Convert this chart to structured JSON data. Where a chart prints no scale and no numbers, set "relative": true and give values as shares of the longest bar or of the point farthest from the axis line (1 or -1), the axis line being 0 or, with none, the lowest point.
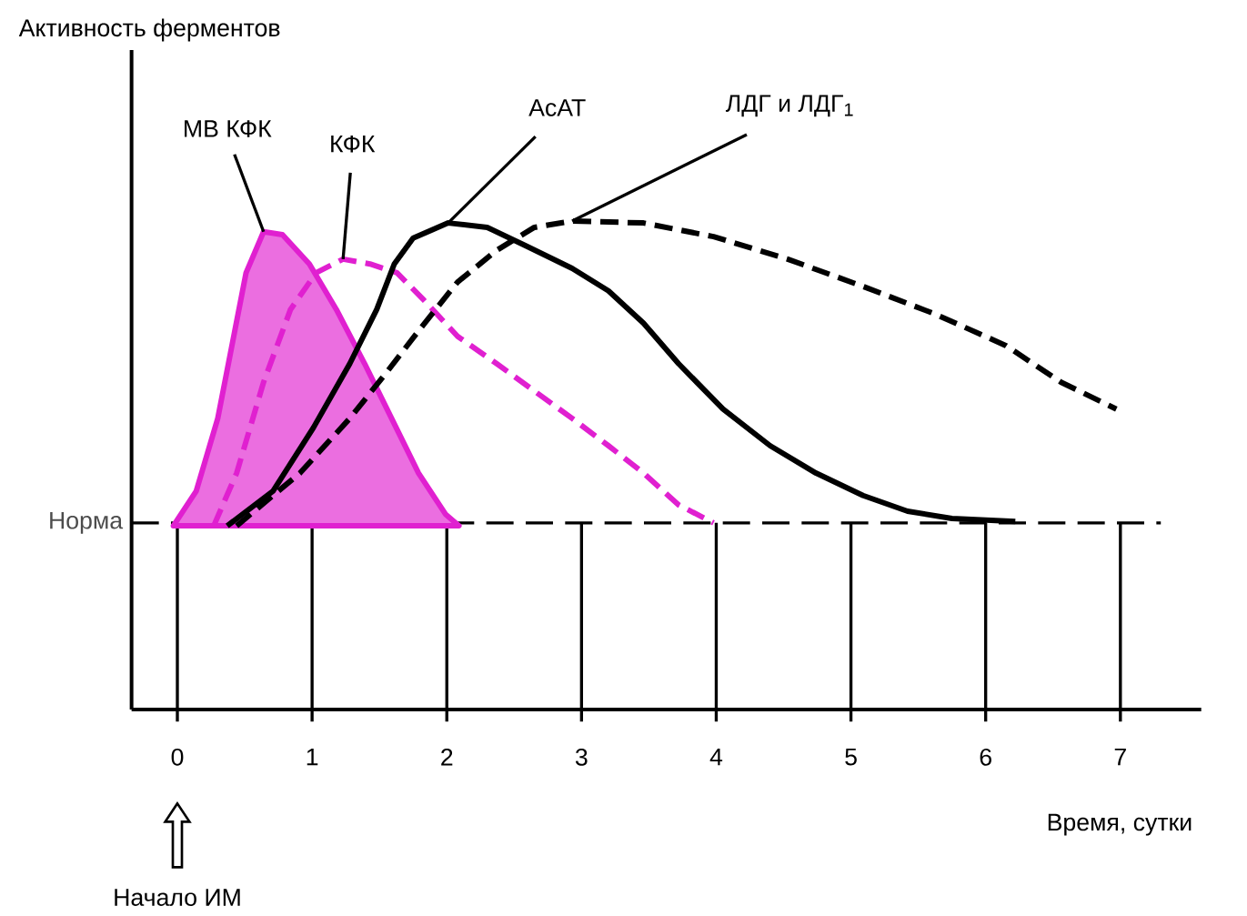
{
  "chart_data": {
    "type": "line",
    "relative": true,
    "xlabel": "Время, сутки",
    "xlim": [
      -0.34,
      7.6
    ],
    "xticks": [
      0,
      1,
      2,
      3,
      4,
      5,
      6,
      7
    ],
    "marker": "none",
    "ref_lines": [
      {
        "axis": "y",
        "value": 0.382,
        "label": "Норма",
        "line_style": "dashed",
        "color": "#000000"
      },
      {
        "axis": "x",
        "value": 0,
        "color": "#000000"
      },
      {
        "axis": "x",
        "value": 1,
        "color": "#000000"
      },
      {
        "axis": "x",
        "value": 2,
        "color": "#000000"
      },
      {
        "axis": "x",
        "value": 3,
        "color": "#000000"
      },
      {
        "axis": "x",
        "value": 4,
        "color": "#000000"
      },
      {
        "axis": "x",
        "value": 5,
        "color": "#000000"
      },
      {
        "axis": "x",
        "value": 6,
        "color": "#000000"
      },
      {
        "axis": "x",
        "value": 7,
        "color": "#000000"
      }
    ],
    "annotations": [
      "Активность ферментов",
      "Начало ИМ"
    ],
    "series": [
      {
        "name": "МВ КФК",
        "type": "area",
        "color": "#e020d0",
        "line_style": "solid",
        "x": [
          -0.03,
          0.14,
          0.3,
          0.51,
          0.64,
          0.78,
          0.98,
          1.18,
          1.39,
          1.59,
          1.79,
          1.99,
          2.09
        ],
        "values": [
          0.376,
          0.447,
          0.596,
          0.894,
          0.978,
          0.972,
          0.912,
          0.819,
          0.708,
          0.596,
          0.484,
          0.4,
          0.376
        ]
      },
      {
        "name": "КФК",
        "color": "#e020d0",
        "line_style": "dashed",
        "x": [
          0.27,
          0.44,
          0.64,
          0.84,
          1.03,
          1.23,
          1.43,
          1.63,
          1.83,
          2.08,
          2.37,
          2.65,
          2.93,
          3.2,
          3.46,
          3.72,
          3.98
        ],
        "values": [
          0.376,
          0.484,
          0.67,
          0.819,
          0.894,
          0.922,
          0.912,
          0.894,
          0.838,
          0.764,
          0.708,
          0.652,
          0.596,
          0.54,
          0.484,
          0.419,
          0.382
        ]
      },
      {
        "name": "АсАТ",
        "color": "#000000",
        "line_style": "solid",
        "x": [
          0.37,
          0.71,
          1.01,
          1.28,
          1.48,
          1.61,
          1.75,
          2.01,
          2.3,
          2.58,
          2.93,
          3.2,
          3.46,
          3.72,
          4.05,
          4.4,
          4.74,
          5.09,
          5.42,
          5.75,
          6.22
        ],
        "values": [
          0.376,
          0.447,
          0.577,
          0.708,
          0.819,
          0.912,
          0.965,
          0.996,
          0.987,
          0.95,
          0.903,
          0.857,
          0.791,
          0.708,
          0.615,
          0.54,
          0.484,
          0.438,
          0.406,
          0.391,
          0.385
        ]
      },
      {
        "name": "ЛДГ и ЛДГ$_{1}$",
        "color": "#000000",
        "line_style": "dashed",
        "x": [
          0.44,
          0.91,
          1.28,
          1.55,
          1.81,
          2.08,
          2.37,
          2.65,
          2.93,
          3.46,
          3.98,
          4.53,
          5.09,
          5.62,
          6.15,
          6.56,
          6.97
        ],
        "values": [
          0.376,
          0.484,
          0.596,
          0.689,
          0.782,
          0.875,
          0.94,
          0.987,
          1.0,
          0.996,
          0.968,
          0.922,
          0.866,
          0.81,
          0.745,
          0.67,
          0.615
        ]
      }
    ]
  }
}
